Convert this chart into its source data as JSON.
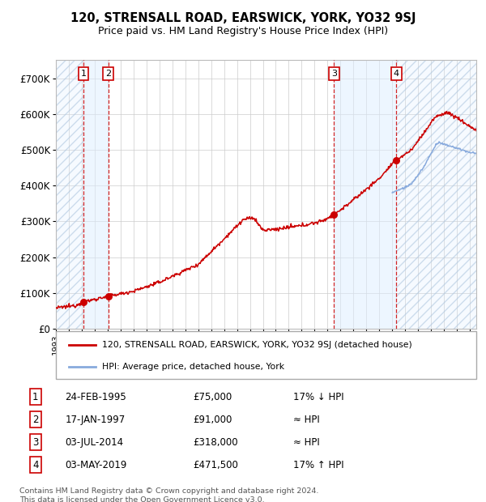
{
  "title": "120, STRENSALL ROAD, EARSWICK, YORK, YO32 9SJ",
  "subtitle": "Price paid vs. HM Land Registry's House Price Index (HPI)",
  "sales": [
    {
      "num": 1,
      "date": "24-FEB-1995",
      "date_x": 1995.12,
      "price": 75000,
      "note": "17% ↓ HPI"
    },
    {
      "num": 2,
      "date": "17-JAN-1997",
      "date_x": 1997.04,
      "price": 91000,
      "note": "≈ HPI"
    },
    {
      "num": 3,
      "date": "03-JUL-2014",
      "date_x": 2014.5,
      "price": 318000,
      "note": "≈ HPI"
    },
    {
      "num": 4,
      "date": "03-MAY-2019",
      "date_x": 2019.33,
      "price": 471500,
      "note": "17% ↑ HPI"
    }
  ],
  "hpi_line_color": "#88aadd",
  "price_line_color": "#cc0000",
  "dot_color": "#cc0000",
  "shade_color": "#ddeeff",
  "ylim": [
    0,
    750000
  ],
  "xlim": [
    1993.0,
    2025.5
  ],
  "yticks": [
    0,
    100000,
    200000,
    300000,
    400000,
    500000,
    600000,
    700000
  ],
  "ytick_labels": [
    "£0",
    "£100K",
    "£200K",
    "£300K",
    "£400K",
    "£500K",
    "£600K",
    "£700K"
  ],
  "background_color": "#ffffff",
  "footer": "Contains HM Land Registry data © Crown copyright and database right 2024.\nThis data is licensed under the Open Government Licence v3.0.",
  "legend_line1": "120, STRENSALL ROAD, EARSWICK, YORK, YO32 9SJ (detached house)",
  "legend_line2": "HPI: Average price, detached house, York"
}
